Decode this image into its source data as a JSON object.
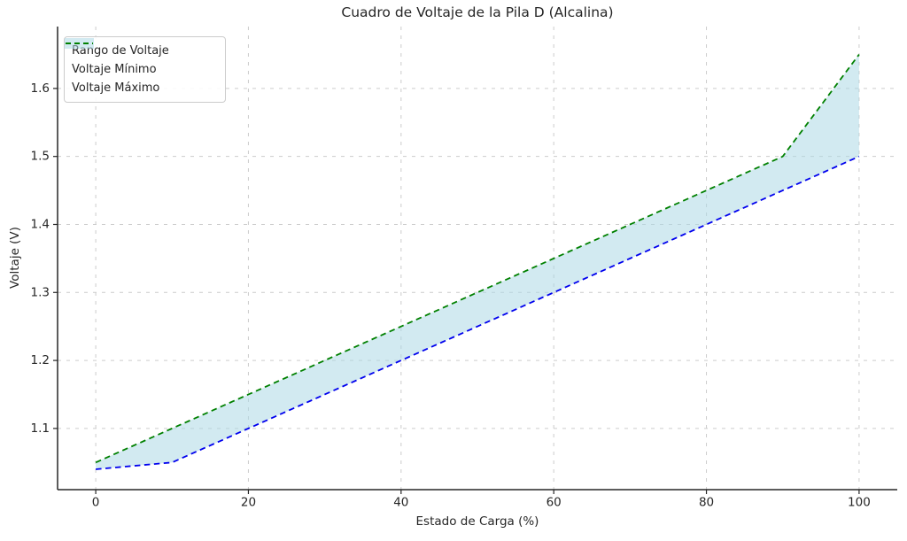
{
  "chart_data": {
    "type": "area",
    "title": "Cuadro de Voltaje de la Pila D (Alcalina)",
    "xlabel": "Estado de Carga (%)",
    "ylabel": "Voltaje (V)",
    "x": [
      0,
      10,
      20,
      30,
      40,
      50,
      60,
      70,
      80,
      90,
      100
    ],
    "series": [
      {
        "name": "Voltaje Mínimo",
        "values": [
          1.04,
          1.05,
          1.1,
          1.15,
          1.2,
          1.25,
          1.3,
          1.35,
          1.4,
          1.45,
          1.5
        ],
        "color": "#0000ee",
        "linestyle": "dashed"
      },
      {
        "name": "Voltaje Máximo",
        "values": [
          1.05,
          1.1,
          1.15,
          1.2,
          1.25,
          1.3,
          1.35,
          1.4,
          1.45,
          1.5,
          1.65
        ],
        "color": "#008000",
        "linestyle": "dashed"
      }
    ],
    "fill_between": {
      "name": "Rango de Voltaje",
      "color": "#add8e6",
      "opacity": 0.55
    },
    "xticks": [
      0,
      20,
      40,
      60,
      80,
      100
    ],
    "yticks": [
      1.1,
      1.2,
      1.3,
      1.4,
      1.5,
      1.6
    ],
    "xlim": [
      -5,
      105
    ],
    "ylim": [
      1.01,
      1.691
    ],
    "grid": true,
    "legend_position": "upper-left"
  },
  "colors": {
    "grid": "#cccccc",
    "spine": "#262626",
    "tick": "#262626",
    "text": "#262626",
    "background": "#ffffff",
    "legend_border": "#cccccc"
  }
}
